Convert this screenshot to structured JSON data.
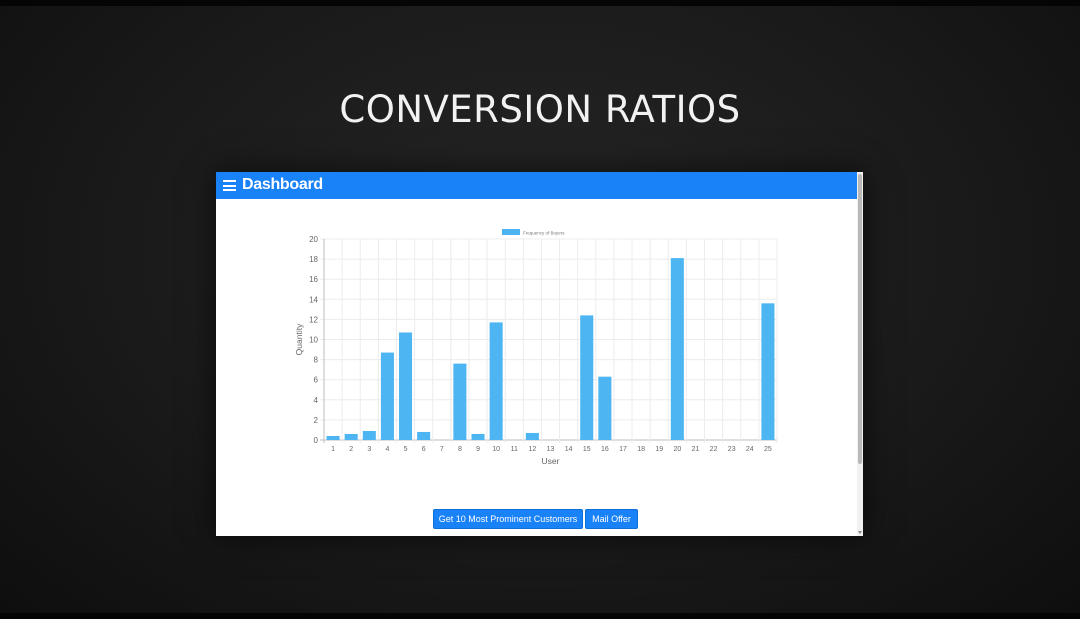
{
  "slide": {
    "title": "CONVERSION RATIOS"
  },
  "app": {
    "title": "Dashboard"
  },
  "buttons": {
    "prominent_customers": "Get 10 Most Prominent Customers",
    "mail_offer": "Mail Offer"
  },
  "icons": {
    "menu": "hamburger-menu-icon"
  },
  "colors": {
    "appbar": "#1a82f7",
    "bar": "#4db5f2"
  },
  "chart_data": {
    "type": "bar",
    "categories": [
      "1",
      "2",
      "3",
      "4",
      "5",
      "6",
      "7",
      "8",
      "9",
      "10",
      "11",
      "12",
      "13",
      "14",
      "15",
      "16",
      "17",
      "18",
      "19",
      "20",
      "21",
      "22",
      "23",
      "24",
      "25"
    ],
    "series": [
      {
        "name": "Frequency of Buyers",
        "values": [
          0.4,
          0.6,
          0.9,
          8.7,
          10.7,
          0.8,
          0,
          7.6,
          0.6,
          11.7,
          0,
          0.7,
          0,
          0,
          12.4,
          6.3,
          0,
          0,
          0,
          18.1,
          0,
          0,
          0,
          0,
          13.6
        ]
      }
    ],
    "xlabel": "User",
    "ylabel": "Quantity",
    "ylim": [
      0,
      20
    ],
    "yticks": [
      0,
      2,
      4,
      6,
      8,
      10,
      12,
      14,
      16,
      18,
      20
    ],
    "grid": true,
    "legend": "top"
  }
}
